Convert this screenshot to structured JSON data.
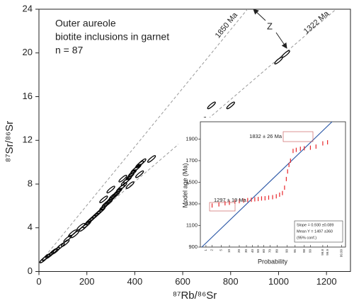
{
  "chart_data": [
    {
      "type": "scatter",
      "title": [
        "Outer aureole",
        "biotite inclusions in garnet",
        "n = 87"
      ],
      "x_label": "⁸⁷Rb/⁸⁶Sr",
      "y_label": "⁸⁷Sr/⁸⁶Sr",
      "x": [
        20,
        30,
        45,
        60,
        70,
        90,
        110,
        120,
        140,
        150,
        175,
        185,
        200,
        210,
        220,
        230,
        240,
        250,
        260,
        270,
        280,
        290,
        300,
        310,
        320,
        330,
        340,
        350,
        360,
        370,
        380,
        390,
        400,
        410,
        420,
        430,
        380,
        350,
        300,
        270,
        420,
        470,
        640,
        680,
        720,
        800,
        1000,
        1030
      ],
      "y": [
        1.1,
        1.3,
        1.5,
        1.8,
        1.9,
        2.3,
        2.6,
        3.0,
        3.5,
        3.4,
        4.1,
        4.0,
        4.3,
        4.6,
        4.8,
        5.0,
        5.2,
        5.4,
        5.6,
        5.9,
        6.2,
        6.3,
        6.6,
        6.9,
        7.0,
        7.3,
        7.6,
        7.8,
        8.2,
        8.4,
        8.7,
        9.0,
        9.3,
        9.5,
        9.8,
        10.0,
        7.9,
        8.5,
        7.5,
        6.6,
        8.9,
        10.3,
        12.8,
        13.8,
        15.2,
        15.2,
        19.3,
        19.9
      ],
      "color": "#000000",
      "xlim": [
        0,
        1300
      ],
      "ylim": [
        0,
        24
      ],
      "xticks": [
        0,
        200,
        400,
        600,
        800,
        1000,
        1200
      ],
      "yticks": [
        0,
        4,
        8,
        12,
        16,
        20,
        24
      ],
      "reference_lines": [
        {
          "label": "1850 Ma",
          "x": [
            0,
            870
          ],
          "y": [
            0.7,
            24
          ]
        },
        {
          "label": "1322 Ma",
          "x": [
            0,
            1240
          ],
          "y": [
            0.7,
            24
          ]
        }
      ],
      "annotations": [
        "Z"
      ]
    },
    {
      "type": "probability",
      "x_label": "Probability",
      "y_label": "Model age (Ma)",
      "x": [
        2,
        4,
        7,
        10,
        15,
        20,
        26,
        32,
        38,
        44,
        50,
        56,
        62,
        68,
        74,
        79,
        83,
        86,
        88,
        89.5,
        90.5,
        91.5,
        92.5,
        94,
        95.5,
        97,
        98,
        99,
        99.5,
        99.8,
        99.9
      ],
      "y": [
        1285,
        1295,
        1305,
        1310,
        1320,
        1325,
        1330,
        1335,
        1338,
        1342,
        1345,
        1350,
        1352,
        1358,
        1362,
        1370,
        1385,
        1400,
        1450,
        1530,
        1600,
        1660,
        1700,
        1790,
        1800,
        1810,
        1815,
        1820,
        1830,
        1860,
        1870
      ],
      "color": "#e8262a",
      "xlim": [
        0.5,
        99.995
      ],
      "ylim": [
        900,
        2060
      ],
      "xticks": [
        1,
        2,
        5,
        10,
        20,
        30,
        40,
        50,
        60,
        70,
        80,
        90,
        95,
        98,
        99,
        99.8,
        99.9,
        99.99
      ],
      "yticks": [
        900,
        1100,
        1300,
        1500,
        1700,
        1900
      ],
      "fit_line": {
        "color": "#2e5aa8",
        "x": [
          0.6,
          99.95
        ],
        "y": [
          900,
          2060
        ]
      },
      "annotations": [
        "1832 ± 26 Ma",
        "1297 ± 19 Ma"
      ],
      "stats": [
        "Slope = 0.930 ±0.089",
        "Mean Y = 1497 ±360",
        "(95% conf.)"
      ]
    }
  ]
}
